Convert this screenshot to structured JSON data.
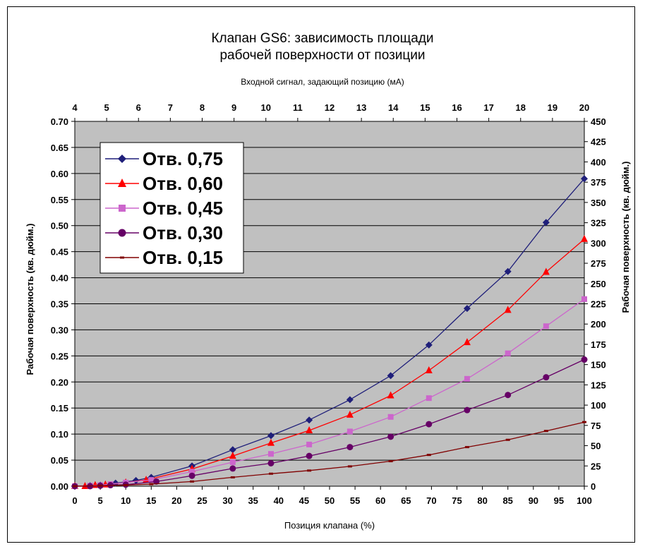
{
  "chart_data": {
    "type": "line",
    "title": [
      "Клапан GS6: зависимость площади",
      "рабочей поверхности от позиции"
    ],
    "top_axis_label": "Входной сигнал, задающий позицию (мА)",
    "xlabel": "Позиция клапана (%)",
    "ylabel_left": "Рабочая поверхность (кв. дюйм.)",
    "ylabel_right": "Рабочая поверхность (кв. дюйм.)",
    "xlim": [
      0,
      100
    ],
    "ylim_left": [
      0,
      0.7
    ],
    "ylim_right": [
      0,
      450
    ],
    "x_ticks": [
      "0",
      "5",
      "10",
      "15",
      "20",
      "25",
      "30",
      "35",
      "40",
      "45",
      "50",
      "55",
      "60",
      "65",
      "70",
      "75",
      "80",
      "85",
      "90",
      "95",
      "100"
    ],
    "top_ticks": [
      "4",
      "5",
      "6",
      "7",
      "8",
      "9",
      "10",
      "11",
      "12",
      "13",
      "14",
      "15",
      "16",
      "17",
      "18",
      "19",
      "20"
    ],
    "y_left_ticks": [
      "0.00",
      "0.05",
      "0.10",
      "0.15",
      "0.20",
      "0.25",
      "0.30",
      "0.35",
      "0.40",
      "0.45",
      "0.50",
      "0.55",
      "0.60",
      "0.65",
      "0.70"
    ],
    "y_right_ticks": [
      "0",
      "25",
      "50",
      "75",
      "100",
      "125",
      "150",
      "175",
      "200",
      "225",
      "250",
      "275",
      "300",
      "325",
      "350",
      "375",
      "400",
      "425",
      "450"
    ],
    "grid": true,
    "legend_position": "top-left",
    "plot_background": "#c0c0c0",
    "series": [
      {
        "name": "Отв. 0,75",
        "color": "#1f1f7a",
        "marker": "diamond",
        "points": [
          [
            0,
            0
          ],
          [
            3,
            0.001
          ],
          [
            5,
            0.002
          ],
          [
            8,
            0.006
          ],
          [
            12,
            0.011
          ],
          [
            15,
            0.017
          ],
          [
            23,
            0.039
          ],
          [
            31,
            0.07
          ],
          [
            38.5,
            0.097
          ],
          [
            46,
            0.127
          ],
          [
            54,
            0.166
          ],
          [
            62,
            0.212
          ],
          [
            69.5,
            0.271
          ],
          [
            77,
            0.341
          ],
          [
            85,
            0.412
          ],
          [
            92.5,
            0.506
          ],
          [
            100,
            0.59
          ]
        ]
      },
      {
        "name": "Отв. 0,60",
        "color": "#ff0000",
        "marker": "triangle",
        "points": [
          [
            0,
            0
          ],
          [
            2,
            0
          ],
          [
            4,
            0.002
          ],
          [
            6,
            0.003
          ],
          [
            10,
            0.007
          ],
          [
            14,
            0.012
          ],
          [
            23,
            0.033
          ],
          [
            31,
            0.058
          ],
          [
            38.5,
            0.083
          ],
          [
            46,
            0.107
          ],
          [
            54,
            0.137
          ],
          [
            62,
            0.174
          ],
          [
            69.5,
            0.222
          ],
          [
            77,
            0.276
          ],
          [
            85,
            0.338
          ],
          [
            92.5,
            0.411
          ],
          [
            100,
            0.474
          ]
        ]
      },
      {
        "name": "Отв. 0,45",
        "color": "#cc66cc",
        "marker": "square",
        "points": [
          [
            0,
            0
          ],
          [
            3,
            0.001
          ],
          [
            5,
            0.002
          ],
          [
            7,
            0.004
          ],
          [
            10,
            0.007
          ],
          [
            15,
            0.012
          ],
          [
            23,
            0.028
          ],
          [
            31,
            0.046
          ],
          [
            38.5,
            0.062
          ],
          [
            46,
            0.08
          ],
          [
            54,
            0.105
          ],
          [
            62,
            0.133
          ],
          [
            69.5,
            0.169
          ],
          [
            77,
            0.206
          ],
          [
            85,
            0.255
          ],
          [
            92.5,
            0.307
          ],
          [
            100,
            0.359
          ]
        ]
      },
      {
        "name": "Отв. 0,30",
        "color": "#660066",
        "marker": "circle",
        "points": [
          [
            0,
            0
          ],
          [
            3,
            0
          ],
          [
            5,
            0.001
          ],
          [
            7,
            0.002
          ],
          [
            10,
            0.003
          ],
          [
            16,
            0.009
          ],
          [
            23,
            0.02
          ],
          [
            31,
            0.034
          ],
          [
            38.5,
            0.044
          ],
          [
            46,
            0.058
          ],
          [
            54,
            0.075
          ],
          [
            62,
            0.095
          ],
          [
            69.5,
            0.119
          ],
          [
            77,
            0.146
          ],
          [
            85,
            0.175
          ],
          [
            92.5,
            0.209
          ],
          [
            100,
            0.243
          ]
        ]
      },
      {
        "name": "Отв. 0,15",
        "color": "#800000",
        "marker": "dash",
        "points": [
          [
            0,
            0
          ],
          [
            5,
            0.001
          ],
          [
            10,
            0.002
          ],
          [
            15,
            0.004
          ],
          [
            23,
            0.009
          ],
          [
            31,
            0.017
          ],
          [
            38.5,
            0.024
          ],
          [
            46,
            0.03
          ],
          [
            54,
            0.038
          ],
          [
            62,
            0.048
          ],
          [
            69.5,
            0.06
          ],
          [
            77,
            0.075
          ],
          [
            85,
            0.089
          ],
          [
            92.5,
            0.106
          ],
          [
            100,
            0.123
          ]
        ]
      }
    ]
  }
}
